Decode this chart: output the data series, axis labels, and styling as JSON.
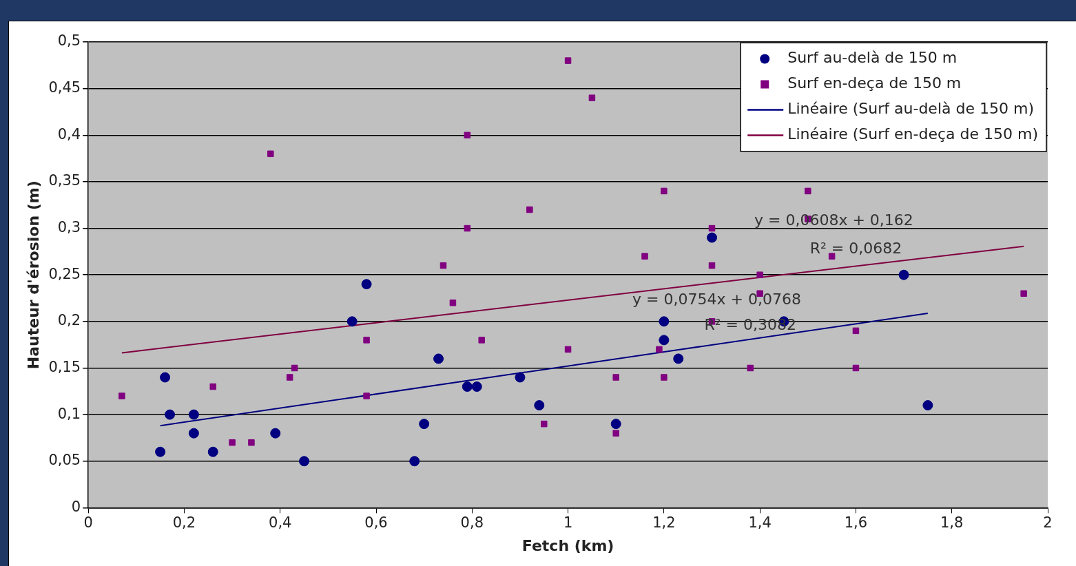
{
  "chart_data": {
    "type": "scatter",
    "xlabel": "Fetch (km)",
    "ylabel": "Hauteur d'érosion (m)",
    "xlim": [
      0,
      2
    ],
    "xticks": [
      0,
      {
        "value": 0.2,
        "label": "0,2"
      },
      {
        "value": 0.4,
        "label": "0,4"
      },
      {
        "value": 0.6,
        "label": "0,6"
      },
      {
        "value": 0.8,
        "label": "0,8"
      },
      1,
      {
        "value": 1.2,
        "label": "1,2"
      },
      {
        "value": 1.4,
        "label": "1,4"
      },
      {
        "value": 1.6,
        "label": "1,6"
      },
      {
        "value": 1.8,
        "label": "1,8"
      },
      2
    ],
    "ylim": [
      0,
      0.5
    ],
    "yticks": [
      0,
      {
        "value": 0.05,
        "label": "0,05"
      },
      {
        "value": 0.1,
        "label": "0,1"
      },
      {
        "value": 0.15,
        "label": "0,15"
      },
      {
        "value": 0.2,
        "label": "0,2"
      },
      {
        "value": 0.25,
        "label": "0,25"
      },
      {
        "value": 0.3,
        "label": "0,3"
      },
      {
        "value": 0.35,
        "label": "0,35"
      },
      {
        "value": 0.4,
        "label": "0,4"
      },
      {
        "value": 0.45,
        "label": "0,45"
      },
      {
        "value": 0.5,
        "label": "0,5"
      }
    ],
    "grid": "y",
    "legend": "top right",
    "series": [
      {
        "name": "Surf au-delà de 150 m",
        "marker": "circle",
        "color": "#000080",
        "x": [
          0.15,
          0.16,
          0.17,
          0.22,
          0.22,
          0.26,
          0.39,
          0.45,
          0.55,
          0.58,
          0.68,
          0.7,
          0.73,
          0.79,
          0.81,
          0.9,
          0.94,
          1.1,
          1.2,
          1.2,
          1.23,
          1.3,
          1.45,
          1.7,
          1.75
        ],
        "values": [
          0.06,
          0.14,
          0.1,
          0.1,
          0.08,
          0.06,
          0.08,
          0.05,
          0.2,
          0.24,
          0.05,
          0.09,
          0.16,
          0.13,
          0.13,
          0.14,
          0.11,
          0.09,
          0.2,
          0.18,
          0.16,
          0.29,
          0.2,
          0.25,
          0.11
        ]
      },
      {
        "name": "Surf en-deça de 150 m",
        "marker": "square",
        "color": "#800080",
        "x": [
          0.07,
          0.26,
          0.3,
          0.34,
          0.38,
          0.42,
          0.43,
          0.58,
          0.58,
          0.74,
          0.76,
          0.79,
          0.79,
          0.82,
          0.92,
          0.95,
          1.0,
          1.0,
          1.05,
          1.1,
          1.1,
          1.16,
          1.19,
          1.2,
          1.2,
          1.3,
          1.3,
          1.3,
          1.38,
          1.4,
          1.4,
          1.5,
          1.5,
          1.55,
          1.6,
          1.6,
          1.95
        ],
        "values": [
          0.12,
          0.13,
          0.07,
          0.07,
          0.38,
          0.14,
          0.15,
          0.18,
          0.12,
          0.26,
          0.22,
          0.4,
          0.3,
          0.18,
          0.32,
          0.09,
          0.48,
          0.17,
          0.44,
          0.14,
          0.08,
          0.27,
          0.17,
          0.34,
          0.14,
          0.3,
          0.26,
          0.2,
          0.15,
          0.25,
          0.23,
          0.34,
          0.31,
          0.27,
          0.19,
          0.15,
          0.23
        ]
      },
      {
        "name": "Linéaire (Surf au-delà de 150 m)",
        "type": "line",
        "marker": "none",
        "color": "#000080",
        "x": [
          0.15,
          1.75
        ],
        "values": [
          0.0881,
          0.2088
        ]
      },
      {
        "name": "Linéaire (Surf en-deça de 150 m)",
        "type": "line",
        "marker": "none",
        "color": "#800040",
        "x": [
          0.07,
          1.95
        ],
        "values": [
          0.1663,
          0.2806
        ]
      }
    ],
    "annotations": [
      "y = 0,0608x + 0,162",
      "R² = 0,0682",
      "y = 0,0754x + 0,0768",
      "R² = 0,3082"
    ]
  }
}
